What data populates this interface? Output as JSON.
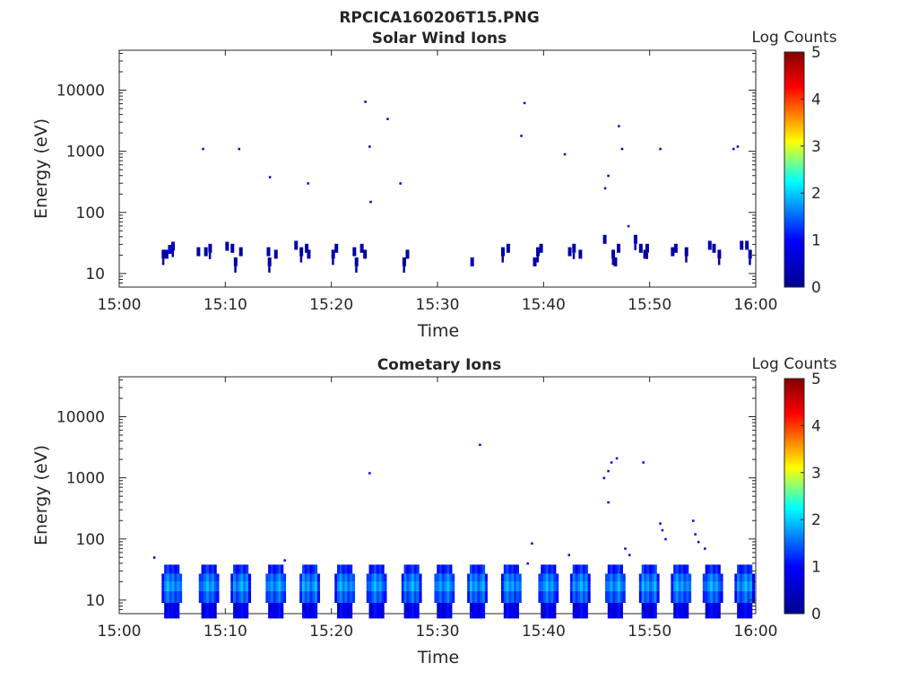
{
  "figure_title": "RPCICA160206T15.PNG",
  "colorbar_stops": [
    "#00008f",
    "#0000ff",
    "#00ffff",
    "#ffff00",
    "#ff0000",
    "#800000"
  ],
  "chart_data": [
    {
      "type": "heatmap",
      "title": "Solar Wind Ions",
      "xlabel": "Time",
      "ylabel": "Energy (eV)",
      "x_ticks": [
        "15:00",
        "15:10",
        "15:20",
        "15:30",
        "15:40",
        "15:50",
        "16:00"
      ],
      "y_ticks": [
        "10",
        "100",
        "1000",
        "10000"
      ],
      "y_scale": "log",
      "xlim_minutes": [
        0,
        60
      ],
      "ylim_ev": [
        6,
        45000
      ],
      "colorbar": {
        "label": "Log Counts",
        "ticks": [
          "0",
          "1",
          "2",
          "3",
          "4",
          "5"
        ],
        "range": [
          0,
          5
        ]
      },
      "cells": [
        [
          4.0,
          20,
          0.2
        ],
        [
          4.3,
          20,
          0.3
        ],
        [
          4.6,
          24,
          0.4
        ],
        [
          4.9,
          27,
          0.3
        ],
        [
          7.3,
          22,
          0.2
        ],
        [
          8.0,
          22,
          0.2
        ],
        [
          8.4,
          25,
          0.2
        ],
        [
          10.0,
          27,
          0.2
        ],
        [
          10.5,
          25,
          0.3
        ],
        [
          10.8,
          15,
          0.2
        ],
        [
          11.3,
          22,
          0.2
        ],
        [
          13.9,
          22,
          0.2
        ],
        [
          14.0,
          15,
          0.2
        ],
        [
          14.6,
          20,
          0.2
        ],
        [
          16.5,
          28,
          0.2
        ],
        [
          17.0,
          22,
          0.2
        ],
        [
          17.5,
          25,
          0.2
        ],
        [
          17.7,
          20,
          0.2
        ],
        [
          20.0,
          20,
          0.3
        ],
        [
          20.3,
          25,
          0.2
        ],
        [
          22.0,
          22,
          0.2
        ],
        [
          22.2,
          15,
          0.2
        ],
        [
          22.7,
          25,
          0.2
        ],
        [
          23.0,
          20,
          0.2
        ],
        [
          26.7,
          15,
          0.2
        ],
        [
          27.0,
          20,
          0.2
        ],
        [
          33.1,
          15,
          0.4
        ],
        [
          36.0,
          22,
          0.2
        ],
        [
          36.5,
          25,
          0.2
        ],
        [
          39.0,
          15,
          0.2
        ],
        [
          39.3,
          22,
          0.2
        ],
        [
          39.6,
          25,
          0.2
        ],
        [
          42.3,
          22,
          0.2
        ],
        [
          42.7,
          25,
          0.2
        ],
        [
          43.3,
          20,
          0.2
        ],
        [
          45.6,
          35,
          0.3
        ],
        [
          46.4,
          20,
          0.2
        ],
        [
          46.6,
          15,
          0.2
        ],
        [
          46.9,
          25,
          0.2
        ],
        [
          48.5,
          35,
          0.3
        ],
        [
          49.0,
          25,
          0.2
        ],
        [
          49.4,
          20,
          0.2
        ],
        [
          49.6,
          25,
          0.2
        ],
        [
          52.0,
          22,
          0.2
        ],
        [
          52.3,
          25,
          0.2
        ],
        [
          53.3,
          22,
          0.2
        ],
        [
          55.5,
          28,
          0.3
        ],
        [
          55.9,
          25,
          0.2
        ],
        [
          56.4,
          20,
          0.2
        ],
        [
          58.5,
          28,
          0.2
        ],
        [
          59.0,
          28,
          0.2
        ],
        [
          59.3,
          20,
          0.2
        ]
      ],
      "dots": [
        [
          7.8,
          1100
        ],
        [
          11.2,
          1100
        ],
        [
          14.1,
          380
        ],
        [
          17.7,
          300
        ],
        [
          23.1,
          6500
        ],
        [
          23.5,
          1200
        ],
        [
          23.6,
          150
        ],
        [
          25.2,
          3400
        ],
        [
          26.4,
          300
        ],
        [
          38.1,
          6200
        ],
        [
          37.8,
          1800
        ],
        [
          41.9,
          900
        ],
        [
          45.7,
          250
        ],
        [
          46.0,
          400
        ],
        [
          47.0,
          2600
        ],
        [
          47.3,
          1100
        ],
        [
          47.9,
          60
        ],
        [
          50.9,
          1100
        ],
        [
          57.8,
          1100
        ],
        [
          58.2,
          1200
        ]
      ],
      "dot_level": 0.5
    },
    {
      "type": "heatmap",
      "title": "Cometary Ions",
      "xlabel": "Time",
      "ylabel": "Energy (eV)",
      "x_ticks": [
        "15:00",
        "15:10",
        "15:20",
        "15:30",
        "15:40",
        "15:50",
        "16:00"
      ],
      "y_ticks": [
        "10",
        "100",
        "1000",
        "10000"
      ],
      "y_scale": "log",
      "xlim_minutes": [
        0,
        60
      ],
      "ylim_ev": [
        6,
        45000
      ],
      "colorbar": {
        "label": "Log Counts",
        "ticks": [
          "0",
          "1",
          "2",
          "3",
          "4",
          "5"
        ],
        "range": [
          0,
          5
        ]
      },
      "burst_starts_minutes": [
        4.0,
        7.5,
        10.5,
        13.8,
        17.0,
        20.3,
        23.3,
        26.6,
        29.7,
        32.8,
        36.0,
        39.5,
        42.5,
        45.8,
        49.0,
        52.0,
        55.0,
        58.0
      ],
      "burst_duration_minutes": 1.9,
      "dots": [
        [
          23.5,
          1200
        ],
        [
          33.9,
          3500
        ],
        [
          38.8,
          85
        ],
        [
          45.6,
          1000
        ],
        [
          46.0,
          1300
        ],
        [
          46.3,
          1800
        ],
        [
          46.8,
          2100
        ],
        [
          49.3,
          1800
        ],
        [
          46.0,
          400
        ],
        [
          50.9,
          180
        ],
        [
          51.1,
          140
        ],
        [
          51.4,
          100
        ],
        [
          54.0,
          200
        ],
        [
          54.2,
          120
        ],
        [
          54.5,
          90
        ],
        [
          55.1,
          70
        ],
        [
          47.6,
          70
        ],
        [
          48.0,
          55
        ],
        [
          42.3,
          55
        ],
        [
          38.4,
          40
        ],
        [
          15.5,
          45
        ],
        [
          3.2,
          50
        ]
      ],
      "dot_level": 0.7
    }
  ]
}
